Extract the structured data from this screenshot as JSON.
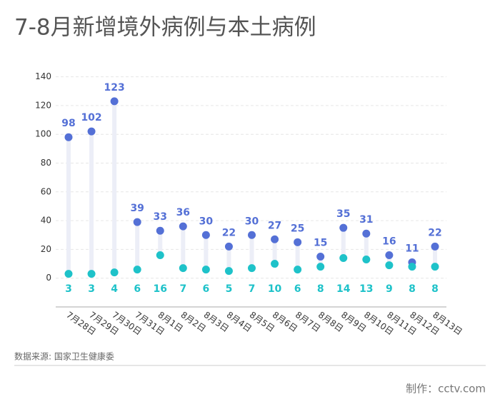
{
  "chart_data": {
    "type": "dumbbell",
    "title": "7-8月新增境外病例与本土病例",
    "source": "数据来源: 国家卫生健康委",
    "credit": "制作：cctv.com",
    "categories": [
      "7月28日",
      "7月29日",
      "7月30日",
      "7月31日",
      "8月1日",
      "8月2日",
      "8月3日",
      "8月4日",
      "8月5日",
      "8月6日",
      "8月7日",
      "8月8日",
      "8月9日",
      "8月10日",
      "8月11日",
      "8月12日",
      "8月13日"
    ],
    "series": [
      {
        "color": "#5470d6",
        "values": [
          98,
          102,
          123,
          39,
          33,
          36,
          30,
          22,
          30,
          27,
          25,
          15,
          35,
          31,
          16,
          11,
          22
        ]
      },
      {
        "color": "#1ec2c9",
        "values": [
          3,
          3,
          4,
          6,
          16,
          7,
          6,
          5,
          7,
          10,
          6,
          8,
          14,
          13,
          9,
          8,
          8
        ]
      }
    ],
    "ylim": [
      -20,
      140
    ],
    "yticks": [
      0,
      20,
      40,
      60,
      80,
      100,
      120,
      140
    ],
    "grid": true
  }
}
